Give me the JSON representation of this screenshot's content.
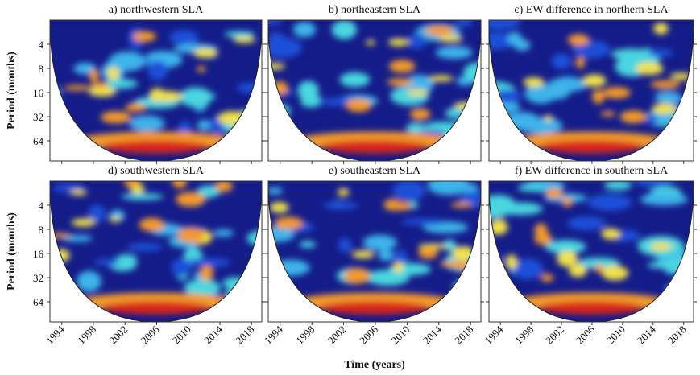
{
  "chart_data": [
    {
      "type": "wavelet",
      "title": "a) northwestern SLA",
      "ylabel": "Period (months)",
      "xlim": [
        1992.5,
        2019.3
      ],
      "ylim": [
        2,
        114
      ],
      "log_y": true,
      "xticks": [
        1994,
        1998,
        2002,
        2006,
        2010,
        2014,
        2018
      ],
      "yticks": [
        4,
        8,
        16,
        32,
        64
      ],
      "ytick_labels": true,
      "xtick_labels": false
    },
    {
      "type": "wavelet",
      "title": "b) northeastern SLA",
      "xlim": [
        1992.5,
        2019.3
      ],
      "ylim": [
        2,
        114
      ],
      "log_y": true,
      "xticks": [
        1994,
        1998,
        2002,
        2006,
        2010,
        2014,
        2018
      ],
      "yticks": [
        4,
        8,
        16,
        32,
        64
      ],
      "ytick_labels": false,
      "xtick_labels": false
    },
    {
      "type": "wavelet",
      "title": "c) EW difference in northern SLA",
      "xlim": [
        1992.5,
        2019.3
      ],
      "ylim": [
        2,
        114
      ],
      "log_y": true,
      "xticks": [
        1994,
        1998,
        2002,
        2006,
        2010,
        2014,
        2018
      ],
      "yticks": [
        4,
        8,
        16,
        32,
        64
      ],
      "ytick_labels": false,
      "xtick_labels": false
    },
    {
      "type": "wavelet",
      "title": "d) southwestern SLA",
      "ylabel": "Period (months)",
      "xlim": [
        1992.5,
        2019.3
      ],
      "ylim": [
        2,
        114
      ],
      "log_y": true,
      "xticks": [
        1994,
        1998,
        2002,
        2006,
        2010,
        2014,
        2018
      ],
      "yticks": [
        4,
        8,
        16,
        32,
        64
      ],
      "ytick_labels": true,
      "xtick_labels": true
    },
    {
      "type": "wavelet",
      "title": "e) southeastern SLA",
      "xlabel": "Time (years)",
      "xlim": [
        1992.5,
        2019.3
      ],
      "ylim": [
        2,
        114
      ],
      "log_y": true,
      "xticks": [
        1994,
        1998,
        2002,
        2006,
        2010,
        2014,
        2018
      ],
      "yticks": [
        4,
        8,
        16,
        32,
        64
      ],
      "ytick_labels": false,
      "xtick_labels": true
    },
    {
      "type": "wavelet",
      "title": "f) EW difference in southern SLA",
      "xlim": [
        1992.5,
        2019.3
      ],
      "ylim": [
        2,
        114
      ],
      "log_y": true,
      "xticks": [
        1994,
        1998,
        2002,
        2006,
        2010,
        2014,
        2018
      ],
      "yticks": [
        4,
        8,
        16,
        32,
        64
      ],
      "ytick_labels": false,
      "xtick_labels": true
    }
  ]
}
